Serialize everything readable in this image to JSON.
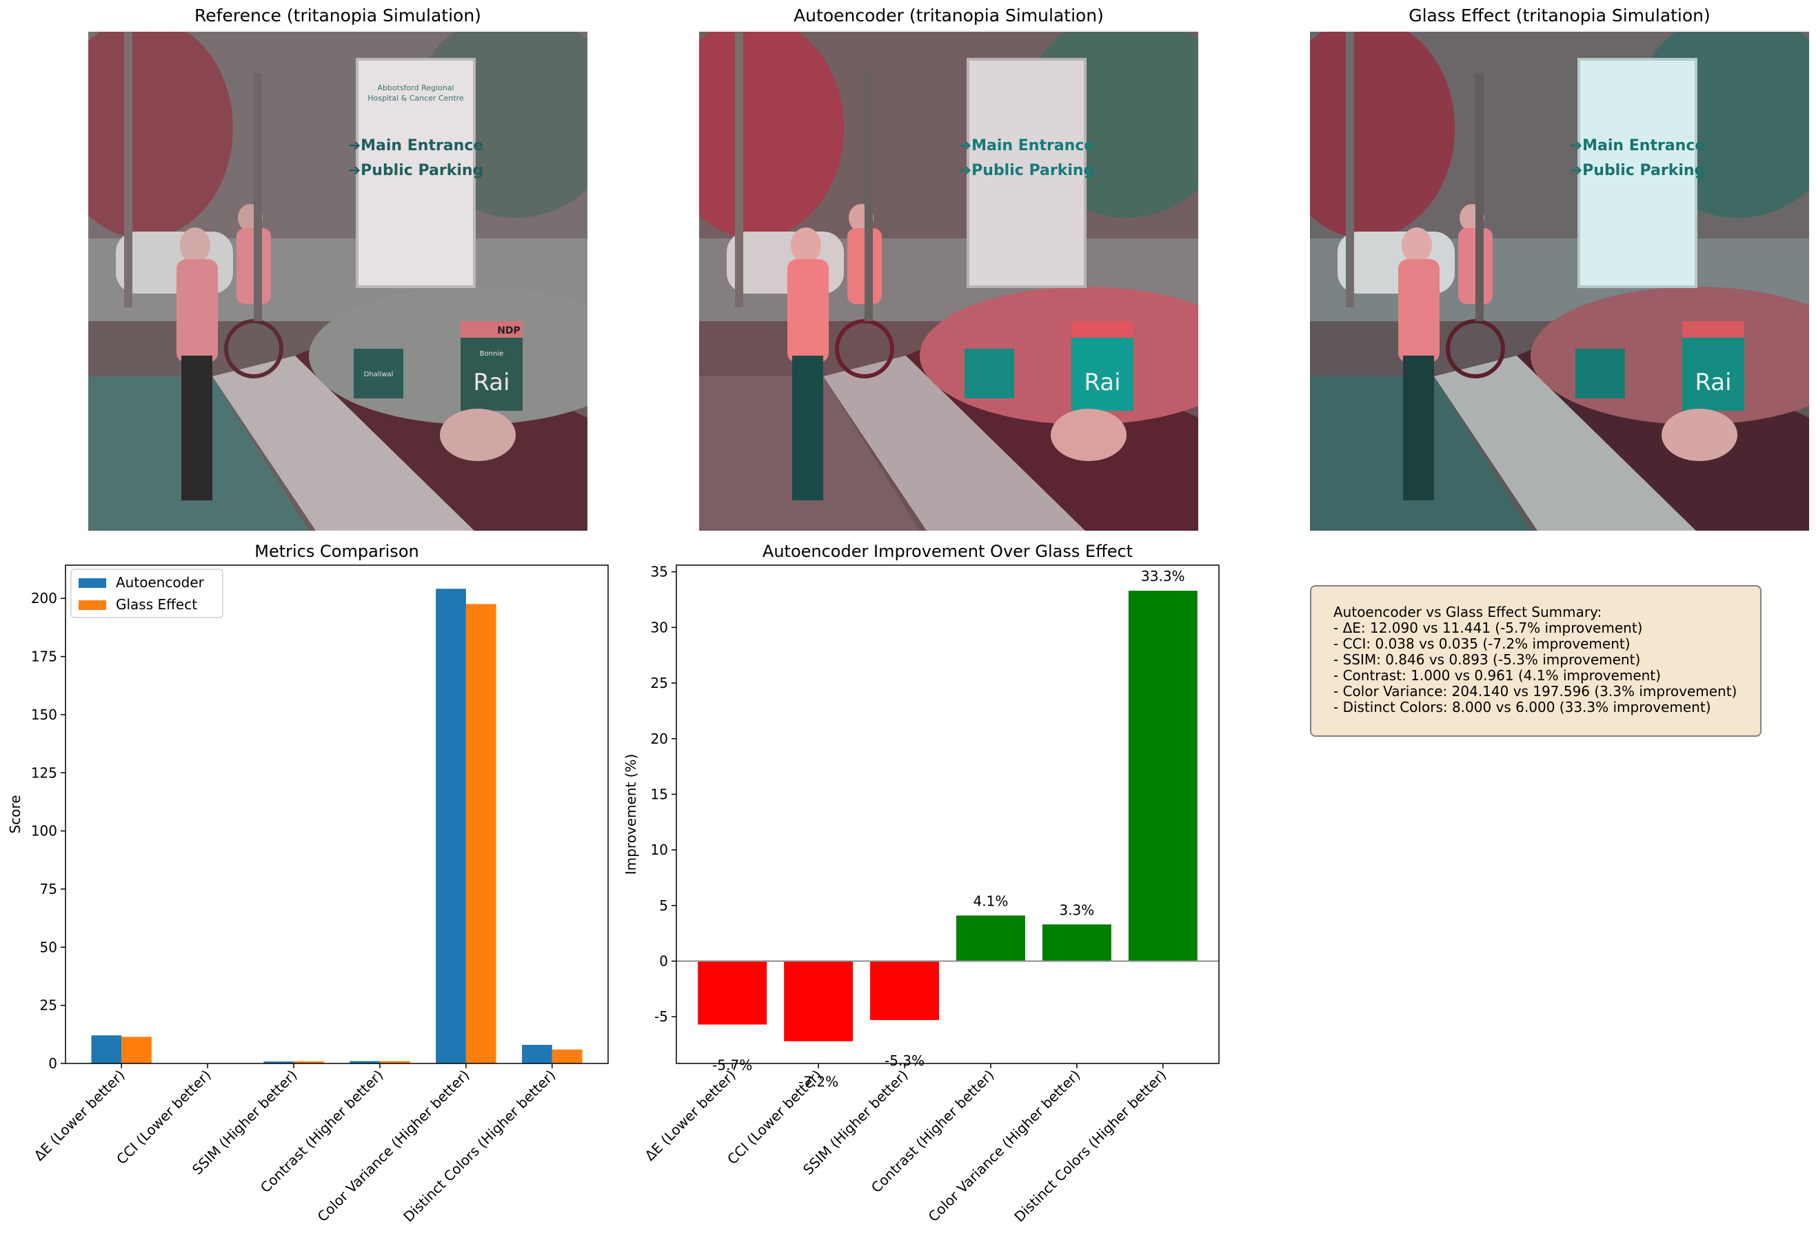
{
  "panels": {
    "reference_title": "Reference (tritanopia Simulation)",
    "autoencoder_title": "Autoencoder (tritanopia Simulation)",
    "glass_title": "Glass Effect (tritanopia Simulation)"
  },
  "photo_text": {
    "sign_line1": "Abbotsford Regional",
    "sign_line2": "Hospital & Cancer Centre",
    "sign_main": "➔Main Entrance",
    "sign_parking": "➔Public Parking",
    "election_sign": "Rai",
    "election_name": "Bonnie",
    "election_party": "NDP",
    "small_sign": "Dhaliwal"
  },
  "chart_data": [
    {
      "type": "bar",
      "title": "Metrics Comparison",
      "xlabel": "",
      "ylabel": "Score",
      "categories": [
        "ΔE (Lower better)",
        "CCI (Lower better)",
        "SSIM (Higher better)",
        "Contrast (Higher better)",
        "Color Variance (Higher better)",
        "Distinct Colors (Higher better)"
      ],
      "series": [
        {
          "name": "Autoencoder",
          "color": "#1f77b4",
          "values": [
            12.09,
            0.038,
            0.846,
            1.0,
            204.14,
            8.0
          ]
        },
        {
          "name": "Glass Effect",
          "color": "#ff7f0e",
          "values": [
            11.441,
            0.035,
            0.893,
            0.961,
            197.596,
            6.0
          ]
        }
      ],
      "ylim": [
        0,
        214.3
      ],
      "yticks": [
        0,
        25,
        50,
        75,
        100,
        125,
        150,
        175,
        200
      ],
      "legend": "top-left",
      "grid": false
    },
    {
      "type": "bar",
      "title": "Autoencoder Improvement Over Glass Effect",
      "xlabel": "",
      "ylabel": "Improvement (%)",
      "categories": [
        "ΔE (Lower better)",
        "CCI (Lower better)",
        "SSIM (Higher better)",
        "Contrast (Higher better)",
        "Color Variance (Higher better)",
        "Distinct Colors (Higher better)"
      ],
      "values": [
        -5.7,
        -7.2,
        -5.3,
        4.1,
        3.3,
        33.3
      ],
      "data_labels": [
        "-5.7%",
        "-7.2%",
        "-5.3%",
        "4.1%",
        "3.3%",
        "33.3%"
      ],
      "positive_color": "#008000",
      "negative_color": "#ff0000",
      "ylim": [
        -9.2,
        35.6
      ],
      "yticks": [
        -5,
        0,
        5,
        10,
        15,
        20,
        25,
        30,
        35
      ],
      "zero_line": true,
      "grid": false
    }
  ],
  "summary": {
    "title": "Autoencoder vs Glass Effect Summary:",
    "lines": [
      "- ΔE: 12.090 vs 11.441 (-5.7% improvement)",
      "- CCI: 0.038 vs 0.035 (-7.2% improvement)",
      "- SSIM: 0.846 vs 0.893 (-5.3% improvement)",
      "- Contrast: 1.000 vs 0.961 (4.1% improvement)",
      "- Color Variance: 204.140 vs 197.596 (3.3% improvement)",
      "- Distinct Colors: 8.000 vs 6.000 (33.3% improvement)"
    ]
  }
}
